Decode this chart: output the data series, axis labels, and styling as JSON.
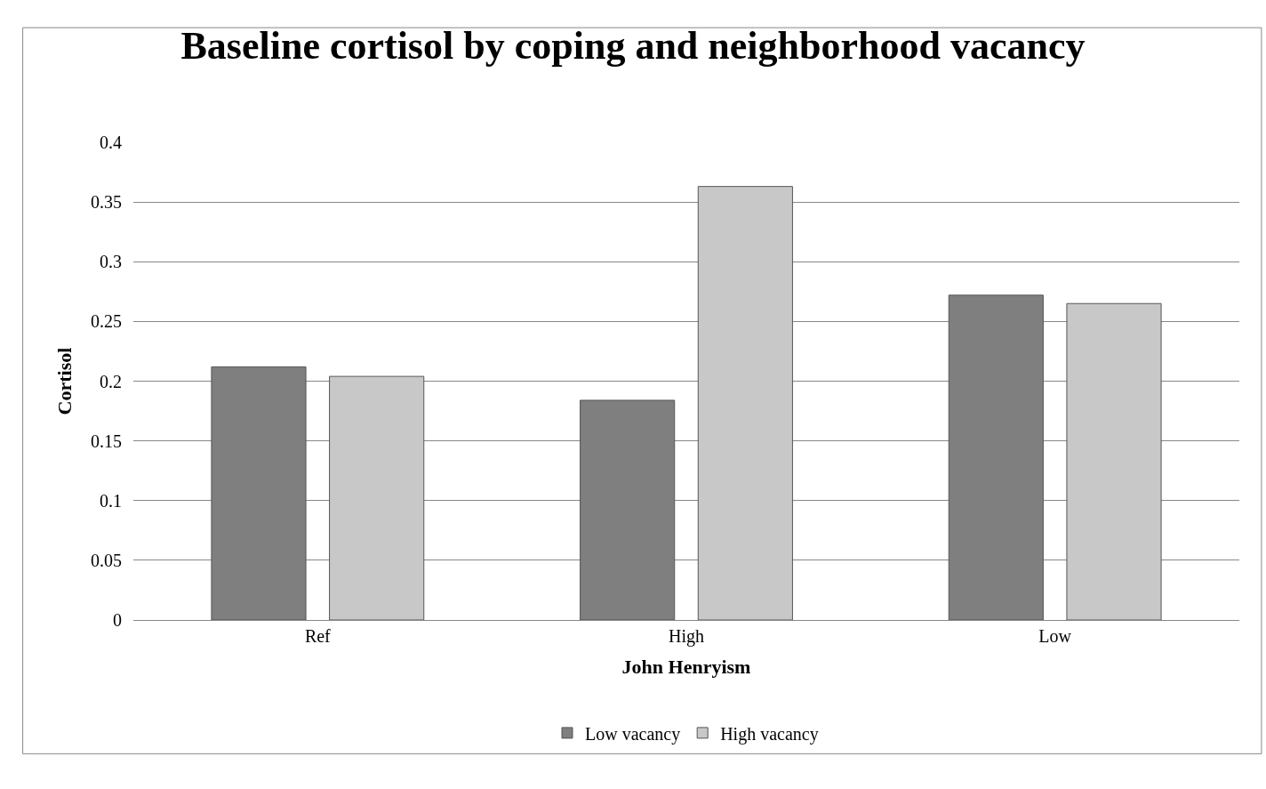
{
  "chart_data": {
    "type": "bar",
    "title": "Baseline cortisol by coping and neighborhood vacancy",
    "xlabel": "John Henryism",
    "ylabel": "Cortisol",
    "categories": [
      "Ref",
      "High",
      "Low"
    ],
    "series": [
      {
        "name": "Low vacancy",
        "color": "#7f7f7f",
        "values": [
          0.212,
          0.184,
          0.272
        ]
      },
      {
        "name": "High vacancy",
        "color": "#c8c8c8",
        "values": [
          0.204,
          0.363,
          0.265
        ]
      }
    ],
    "ylim": [
      0,
      0.4
    ],
    "yticks": [
      0,
      0.05,
      0.1,
      0.15,
      0.2,
      0.25,
      0.3,
      0.35,
      0.4
    ],
    "grid": "y",
    "legend": "bottom"
  }
}
